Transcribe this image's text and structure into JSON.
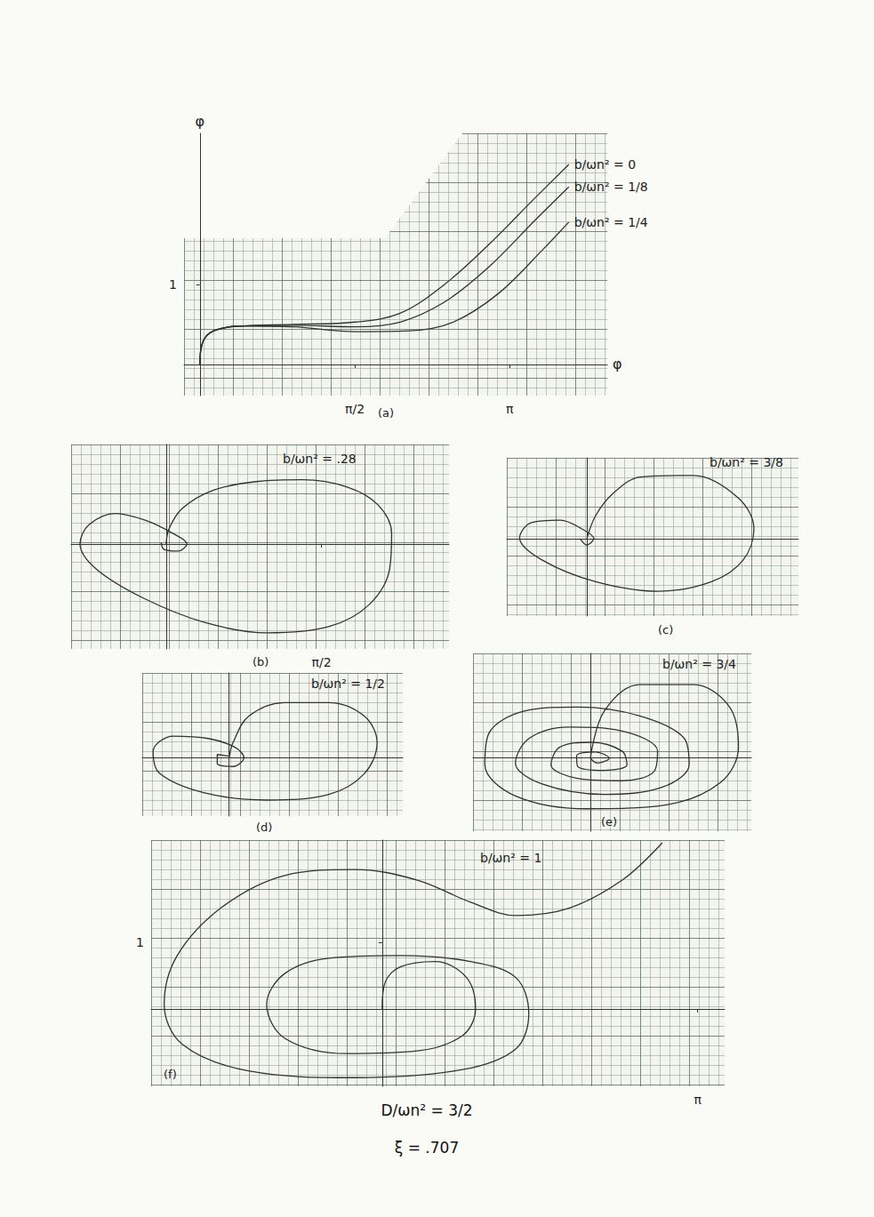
{
  "chart_data": [
    {
      "type": "line",
      "panel": "(a)",
      "xlabel": "φ",
      "ylabel": "φ",
      "grid": true,
      "xlim": [
        -0.16,
        4.13
      ],
      "ylim": [
        -0.39,
        2.89
      ],
      "xticks": [
        {
          "value": 1.5708,
          "label": "π/2"
        },
        {
          "value": 3.1416,
          "label": "π"
        }
      ],
      "yticks": [
        1
      ],
      "series": [
        {
          "name": "b/ωn² = 0",
          "color": "#333333",
          "x": [
            0,
            0.03,
            0.14,
            0.41,
            0.95,
            1.58,
            2.03,
            2.48,
            2.93,
            3.38,
            3.74
          ],
          "values": [
            0,
            0.28,
            0.42,
            0.48,
            0.5,
            0.53,
            0.64,
            1.0,
            1.5,
            2.06,
            2.5
          ]
        },
        {
          "name": "b/ωn² = 1/8",
          "color": "#333333",
          "x": [
            0,
            0.03,
            0.14,
            0.41,
            0.95,
            1.58,
            2.03,
            2.48,
            2.93,
            3.38,
            3.74
          ],
          "values": [
            0,
            0.28,
            0.42,
            0.48,
            0.49,
            0.47,
            0.53,
            0.78,
            1.22,
            1.78,
            2.22
          ]
        },
        {
          "name": "b/ωn² = 1/4",
          "color": "#333333",
          "x": [
            0,
            0.03,
            0.14,
            0.41,
            0.95,
            1.58,
            2.12,
            2.57,
            3.03,
            3.48,
            3.74
          ],
          "values": [
            0,
            0.28,
            0.42,
            0.48,
            0.47,
            0.41,
            0.42,
            0.53,
            0.89,
            1.44,
            1.78
          ]
        }
      ]
    },
    {
      "type": "line",
      "panel": "(b)",
      "grid": true,
      "tick_labels": "x",
      "xlim": [
        -0.96,
        2.86
      ],
      "ylim": [
        -1.31,
        1.24
      ],
      "xticks": [
        {
          "value": 1.5708,
          "label": "π/2"
        }
      ],
      "series": [
        {
          "name": "b/ωn² = .28",
          "color": "#333333",
          "x": [
            0,
            0.03,
            0.16,
            0.48,
            0.93,
            1.38,
            1.83,
            2.14,
            2.28,
            2.26,
            2.05,
            1.65,
            1.02,
            0.39,
            -0.24,
            -0.71,
            -0.87,
            -0.78,
            -0.51,
            -0.2,
            0.07,
            0.21,
            0.12,
            -0.02,
            -0.05
          ],
          "values": [
            0,
            0.19,
            0.44,
            0.67,
            0.78,
            0.8,
            0.71,
            0.49,
            0.13,
            -0.31,
            -0.76,
            -1.03,
            -1.11,
            -0.98,
            -0.67,
            -0.31,
            0,
            0.24,
            0.38,
            0.29,
            0.13,
            0,
            -0.09,
            -0.07,
            0.02
          ]
        }
      ]
    },
    {
      "type": "line",
      "panel": "(c)",
      "grid": true,
      "tick_labels": false,
      "xlim": [
        -0.81,
        2.14
      ],
      "ylim": [
        -0.97,
        1.01
      ],
      "series": [
        {
          "name": "b/ωn² = 3/8",
          "color": "#333333",
          "x": [
            0,
            0.09,
            0.27,
            0.54,
            1.08,
            1.53,
            1.69,
            1.58,
            1.26,
            0.72,
            0.09,
            -0.45,
            -0.68,
            -0.56,
            -0.27,
            -0.05,
            0.07,
            0,
            -0.07
          ],
          "values": [
            0,
            0.29,
            0.57,
            0.77,
            0.79,
            0.51,
            0.12,
            -0.27,
            -0.54,
            -0.66,
            -0.54,
            -0.27,
            0.01,
            0.2,
            0.23,
            0.12,
            0,
            -0.08,
            0
          ]
        }
      ]
    },
    {
      "type": "line",
      "panel": "(d)",
      "grid": true,
      "tick_labels": false,
      "xlim": [
        -0.88,
        1.76
      ],
      "ylim": [
        -0.73,
        1.06
      ],
      "series": [
        {
          "name": "b/ωn² = 1/2",
          "color": "#333333",
          "x": [
            0,
            0.04,
            0.2,
            0.56,
            1.01,
            1.37,
            1.5,
            1.37,
            1.01,
            0.38,
            -0.25,
            -0.7,
            -0.77,
            -0.57,
            -0.21,
            0.06,
            0.15,
            0.04,
            -0.12,
            -0.12,
            0
          ],
          "values": [
            0,
            0.19,
            0.52,
            0.69,
            0.69,
            0.52,
            0.19,
            -0.2,
            -0.46,
            -0.53,
            -0.44,
            -0.2,
            0.08,
            0.27,
            0.24,
            0.13,
            0,
            -0.11,
            -0.07,
            0.04,
            0.02
          ]
        }
      ]
    },
    {
      "type": "line",
      "panel": "(e)",
      "grid": true,
      "tick_labels": false,
      "xlim": [
        -1.19,
        1.63
      ],
      "ylim": [
        -0.92,
        1.3
      ],
      "series": [
        {
          "name": "b/ωn² = 3/4",
          "color": "#333333",
          "x": [
            0,
            0.14,
            0.5,
            1.05,
            1.41,
            1.5,
            1.32,
            0.77,
            -0.04,
            -0.76,
            -1.07,
            -1.03,
            -0.67,
            -0.13,
            0.5,
            0.95,
            1.0,
            0.73,
            0.14,
            -0.49,
            -0.76,
            -0.62,
            -0.22,
            0.32,
            0.68,
            0.64,
            0.32,
            -0.13,
            -0.4,
            -0.31,
            0.01,
            0.32,
            0.37,
            0.14,
            -0.13,
            -0.14,
            0.05,
            0.19,
            0.07,
            0
          ],
          "values": [
            0,
            0.58,
            0.91,
            0.91,
            0.63,
            0.13,
            -0.31,
            -0.59,
            -0.64,
            -0.48,
            -0.09,
            0.3,
            0.58,
            0.63,
            0.52,
            0.24,
            -0.09,
            -0.37,
            -0.46,
            -0.33,
            -0.07,
            0.24,
            0.38,
            0.33,
            0.08,
            -0.18,
            -0.29,
            -0.26,
            -0.09,
            0.13,
            0.19,
            0.08,
            -0.09,
            -0.16,
            -0.11,
            0.02,
            0.07,
            -0.01,
            -0.07,
            -0.01
          ]
        }
      ]
    },
    {
      "type": "line",
      "panel": "(f)",
      "grid": true,
      "xlim": [
        -2.3,
        3.41
      ],
      "ylim": [
        -1.16,
        2.53
      ],
      "xticks": [
        {
          "value": 3.1416,
          "label": "π"
        }
      ],
      "yticks": [
        1
      ],
      "annotations": [
        "D/ωn² = 3/2",
        "ξ = .707"
      ],
      "series": [
        {
          "name": "b/ωn² = 1",
          "color": "#333333",
          "x": [
            0,
            0.03,
            0.18,
            0.53,
            0.84,
            0.93,
            0.8,
            0.35,
            -0.35,
            -0.97,
            -1.15,
            -0.97,
            -0.53,
            0.18,
            0.88,
            1.33,
            1.46,
            1.33,
            0.8,
            -0.27,
            -1.33,
            -1.99,
            -2.17,
            -2.04,
            -1.59,
            -0.97,
            -0.27,
            0.35,
            0.88,
            1.33,
            1.86,
            2.39,
            2.79
          ],
          "values": [
            0,
            0.4,
            0.63,
            0.71,
            0.47,
            0,
            -0.4,
            -0.63,
            -0.67,
            -0.44,
            0.07,
            0.53,
            0.76,
            0.8,
            0.71,
            0.47,
            -0.07,
            -0.6,
            -0.91,
            -1.03,
            -0.93,
            -0.53,
            0.07,
            0.8,
            1.53,
            2.0,
            2.09,
            1.93,
            1.6,
            1.4,
            1.51,
            1.93,
            2.49
          ]
        }
      ]
    }
  ]
}
